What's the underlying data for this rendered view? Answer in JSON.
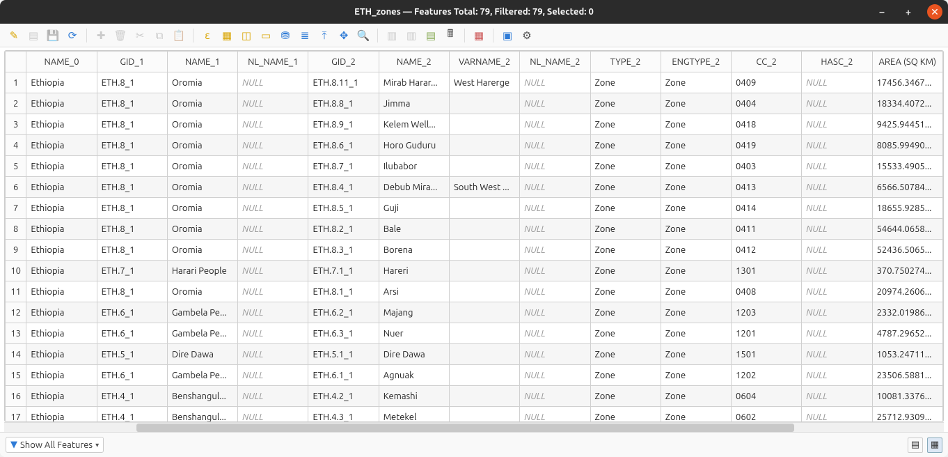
{
  "window": {
    "title": "ETH_zones — Features Total: 79, Filtered: 79, Selected: 0"
  },
  "columns": [
    {
      "key": "NAME_0",
      "label": "NAME_0",
      "width": 100
    },
    {
      "key": "GID_1",
      "label": "GID_1",
      "width": 100
    },
    {
      "key": "NAME_1",
      "label": "NAME_1",
      "width": 100
    },
    {
      "key": "NL_NAME_1",
      "label": "NL_NAME_1",
      "width": 100
    },
    {
      "key": "GID_2",
      "label": "GID_2",
      "width": 100
    },
    {
      "key": "NAME_2",
      "label": "NAME_2",
      "width": 100
    },
    {
      "key": "VARNAME_2",
      "label": "VARNAME_2",
      "width": 100
    },
    {
      "key": "NL_NAME_2",
      "label": "NL_NAME_2",
      "width": 100
    },
    {
      "key": "TYPE_2",
      "label": "TYPE_2",
      "width": 100
    },
    {
      "key": "ENGTYPE_2",
      "label": "ENGTYPE_2",
      "width": 100
    },
    {
      "key": "CC_2",
      "label": "CC_2",
      "width": 100
    },
    {
      "key": "HASC_2",
      "label": "HASC_2",
      "width": 100
    },
    {
      "key": "AREA_SQKM",
      "label": "AREA (SQ KM)",
      "width": 100
    }
  ],
  "rows": [
    {
      "NAME_0": "Ethiopia",
      "GID_1": "ETH.8_1",
      "NAME_1": "Oromia",
      "NL_NAME_1": null,
      "GID_2": "ETH.8.11_1",
      "NAME_2": "Mirab Harar...",
      "VARNAME_2": "West Harerge",
      "NL_NAME_2": null,
      "TYPE_2": "Zone",
      "ENGTYPE_2": "Zone",
      "CC_2": "0409",
      "HASC_2": null,
      "AREA_SQKM": "17456.3467..."
    },
    {
      "NAME_0": "Ethiopia",
      "GID_1": "ETH.8_1",
      "NAME_1": "Oromia",
      "NL_NAME_1": null,
      "GID_2": "ETH.8.8_1",
      "NAME_2": "Jimma",
      "VARNAME_2": "",
      "NL_NAME_2": null,
      "TYPE_2": "Zone",
      "ENGTYPE_2": "Zone",
      "CC_2": "0404",
      "HASC_2": null,
      "AREA_SQKM": "18334.4072..."
    },
    {
      "NAME_0": "Ethiopia",
      "GID_1": "ETH.8_1",
      "NAME_1": "Oromia",
      "NL_NAME_1": null,
      "GID_2": "ETH.8.9_1",
      "NAME_2": "Kelem Well...",
      "VARNAME_2": "",
      "NL_NAME_2": null,
      "TYPE_2": "Zone",
      "ENGTYPE_2": "Zone",
      "CC_2": "0418",
      "HASC_2": null,
      "AREA_SQKM": "9425.94451..."
    },
    {
      "NAME_0": "Ethiopia",
      "GID_1": "ETH.8_1",
      "NAME_1": "Oromia",
      "NL_NAME_1": null,
      "GID_2": "ETH.8.6_1",
      "NAME_2": "Horo Guduru",
      "VARNAME_2": "",
      "NL_NAME_2": null,
      "TYPE_2": "Zone",
      "ENGTYPE_2": "Zone",
      "CC_2": "0419",
      "HASC_2": null,
      "AREA_SQKM": "8085.99490..."
    },
    {
      "NAME_0": "Ethiopia",
      "GID_1": "ETH.8_1",
      "NAME_1": "Oromia",
      "NL_NAME_1": null,
      "GID_2": "ETH.8.7_1",
      "NAME_2": "Ilubabor",
      "VARNAME_2": "",
      "NL_NAME_2": null,
      "TYPE_2": "Zone",
      "ENGTYPE_2": "Zone",
      "CC_2": "0403",
      "HASC_2": null,
      "AREA_SQKM": "15533.4905..."
    },
    {
      "NAME_0": "Ethiopia",
      "GID_1": "ETH.8_1",
      "NAME_1": "Oromia",
      "NL_NAME_1": null,
      "GID_2": "ETH.8.4_1",
      "NAME_2": "Debub Mira...",
      "VARNAME_2": "South West ...",
      "NL_NAME_2": null,
      "TYPE_2": "Zone",
      "ENGTYPE_2": "Zone",
      "CC_2": "0413",
      "HASC_2": null,
      "AREA_SQKM": "6566.50784..."
    },
    {
      "NAME_0": "Ethiopia",
      "GID_1": "ETH.8_1",
      "NAME_1": "Oromia",
      "NL_NAME_1": null,
      "GID_2": "ETH.8.5_1",
      "NAME_2": "Guji",
      "VARNAME_2": "",
      "NL_NAME_2": null,
      "TYPE_2": "Zone",
      "ENGTYPE_2": "Zone",
      "CC_2": "0414",
      "HASC_2": null,
      "AREA_SQKM": "18655.9285..."
    },
    {
      "NAME_0": "Ethiopia",
      "GID_1": "ETH.8_1",
      "NAME_1": "Oromia",
      "NL_NAME_1": null,
      "GID_2": "ETH.8.2_1",
      "NAME_2": "Bale",
      "VARNAME_2": "",
      "NL_NAME_2": null,
      "TYPE_2": "Zone",
      "ENGTYPE_2": "Zone",
      "CC_2": "0411",
      "HASC_2": null,
      "AREA_SQKM": "54644.0658..."
    },
    {
      "NAME_0": "Ethiopia",
      "GID_1": "ETH.8_1",
      "NAME_1": "Oromia",
      "NL_NAME_1": null,
      "GID_2": "ETH.8.3_1",
      "NAME_2": "Borena",
      "VARNAME_2": "",
      "NL_NAME_2": null,
      "TYPE_2": "Zone",
      "ENGTYPE_2": "Zone",
      "CC_2": "0412",
      "HASC_2": null,
      "AREA_SQKM": "52436.5065..."
    },
    {
      "NAME_0": "Ethiopia",
      "GID_1": "ETH.7_1",
      "NAME_1": "Harari People",
      "NL_NAME_1": null,
      "GID_2": "ETH.7.1_1",
      "NAME_2": "Hareri",
      "VARNAME_2": "",
      "NL_NAME_2": null,
      "TYPE_2": "Zone",
      "ENGTYPE_2": "Zone",
      "CC_2": "1301",
      "HASC_2": null,
      "AREA_SQKM": "370.750274..."
    },
    {
      "NAME_0": "Ethiopia",
      "GID_1": "ETH.8_1",
      "NAME_1": "Oromia",
      "NL_NAME_1": null,
      "GID_2": "ETH.8.1_1",
      "NAME_2": "Arsi",
      "VARNAME_2": "",
      "NL_NAME_2": null,
      "TYPE_2": "Zone",
      "ENGTYPE_2": "Zone",
      "CC_2": "0408",
      "HASC_2": null,
      "AREA_SQKM": "20974.2606..."
    },
    {
      "NAME_0": "Ethiopia",
      "GID_1": "ETH.6_1",
      "NAME_1": "Gambela Pe...",
      "NL_NAME_1": null,
      "GID_2": "ETH.6.2_1",
      "NAME_2": "Majang",
      "VARNAME_2": "",
      "NL_NAME_2": null,
      "TYPE_2": "Zone",
      "ENGTYPE_2": "Zone",
      "CC_2": "1203",
      "HASC_2": null,
      "AREA_SQKM": "2332.01986..."
    },
    {
      "NAME_0": "Ethiopia",
      "GID_1": "ETH.6_1",
      "NAME_1": "Gambela Pe...",
      "NL_NAME_1": null,
      "GID_2": "ETH.6.3_1",
      "NAME_2": "Nuer",
      "VARNAME_2": "",
      "NL_NAME_2": null,
      "TYPE_2": "Zone",
      "ENGTYPE_2": "Zone",
      "CC_2": "1201",
      "HASC_2": null,
      "AREA_SQKM": "4787.29652..."
    },
    {
      "NAME_0": "Ethiopia",
      "GID_1": "ETH.5_1",
      "NAME_1": "Dire Dawa",
      "NL_NAME_1": null,
      "GID_2": "ETH.5.1_1",
      "NAME_2": "Dire Dawa",
      "VARNAME_2": "",
      "NL_NAME_2": null,
      "TYPE_2": "Zone",
      "ENGTYPE_2": "Zone",
      "CC_2": "1501",
      "HASC_2": null,
      "AREA_SQKM": "1053.24711..."
    },
    {
      "NAME_0": "Ethiopia",
      "GID_1": "ETH.6_1",
      "NAME_1": "Gambela Pe...",
      "NL_NAME_1": null,
      "GID_2": "ETH.6.1_1",
      "NAME_2": "Agnuak",
      "VARNAME_2": "",
      "NL_NAME_2": null,
      "TYPE_2": "Zone",
      "ENGTYPE_2": "Zone",
      "CC_2": "1202",
      "HASC_2": null,
      "AREA_SQKM": "23506.5881..."
    },
    {
      "NAME_0": "Ethiopia",
      "GID_1": "ETH.4_1",
      "NAME_1": "Benshangul...",
      "NL_NAME_1": null,
      "GID_2": "ETH.4.2_1",
      "NAME_2": "Kemashi",
      "VARNAME_2": "",
      "NL_NAME_2": null,
      "TYPE_2": "Zone",
      "ENGTYPE_2": "Zone",
      "CC_2": "0604",
      "HASC_2": null,
      "AREA_SQKM": "10081.3376..."
    },
    {
      "NAME_0": "Ethiopia",
      "GID_1": "ETH.4_1",
      "NAME_1": "Benshangul...",
      "NL_NAME_1": null,
      "GID_2": "ETH.4.3_1",
      "NAME_2": "Metekel",
      "VARNAME_2": "",
      "NL_NAME_2": null,
      "TYPE_2": "Zone",
      "ENGTYPE_2": "Zone",
      "CC_2": "0602",
      "HASC_2": null,
      "AREA_SQKM": "25712.9309..."
    }
  ],
  "footer": {
    "filter_label": "Show All Features"
  },
  "toolbar_icons": [
    {
      "name": "edit-pencil-icon",
      "glyph": "✎",
      "color": "#d9a400"
    },
    {
      "name": "toggle-multi-edit-icon",
      "glyph": "▤",
      "color": "#888",
      "disabled": true
    },
    {
      "name": "save-edits-icon",
      "glyph": "💾",
      "color": "#888",
      "disabled": true
    },
    {
      "name": "reload-icon",
      "glyph": "⟳",
      "color": "#2e7bd6"
    },
    {
      "sep": true
    },
    {
      "name": "add-feature-icon",
      "glyph": "✚",
      "color": "#888",
      "disabled": true
    },
    {
      "name": "delete-feature-icon",
      "glyph": "🗑",
      "color": "#888",
      "disabled": true
    },
    {
      "name": "cut-icon",
      "glyph": "✂",
      "color": "#888",
      "disabled": true
    },
    {
      "name": "copy-icon",
      "glyph": "⧉",
      "color": "#888",
      "disabled": true
    },
    {
      "name": "paste-icon",
      "glyph": "📋",
      "color": "#888",
      "disabled": true
    },
    {
      "sep": true
    },
    {
      "name": "select-by-expression-icon",
      "glyph": "ε",
      "color": "#d9a400"
    },
    {
      "name": "select-all-icon",
      "glyph": "▦",
      "color": "#d9a400"
    },
    {
      "name": "invert-selection-icon",
      "glyph": "◫",
      "color": "#d9a400"
    },
    {
      "name": "deselect-all-icon",
      "glyph": "▭",
      "color": "#d9a400"
    },
    {
      "name": "filter-select-icon",
      "glyph": "⛃",
      "color": "#2e7bd6"
    },
    {
      "name": "select-by-value-icon",
      "glyph": "≣",
      "color": "#2e7bd6"
    },
    {
      "name": "move-top-icon",
      "glyph": "⤒",
      "color": "#2e7bd6"
    },
    {
      "name": "pan-to-icon",
      "glyph": "✥",
      "color": "#2e7bd6"
    },
    {
      "name": "zoom-to-icon",
      "glyph": "🔍",
      "color": "#555"
    },
    {
      "sep": true
    },
    {
      "name": "new-field-icon",
      "glyph": "▥",
      "color": "#888",
      "disabled": true
    },
    {
      "name": "delete-field-icon",
      "glyph": "▥",
      "color": "#888",
      "disabled": true
    },
    {
      "name": "organize-columns-icon",
      "glyph": "▤",
      "color": "#8a5"
    },
    {
      "name": "field-calculator-icon",
      "glyph": "🖩",
      "color": "#555"
    },
    {
      "sep": true
    },
    {
      "name": "conditional-format-icon",
      "glyph": "▦",
      "color": "#c55"
    },
    {
      "sep": true
    },
    {
      "name": "dock-icon",
      "glyph": "▣",
      "color": "#2e7bd6"
    },
    {
      "name": "actions-icon",
      "glyph": "⚙",
      "color": "#555"
    }
  ]
}
